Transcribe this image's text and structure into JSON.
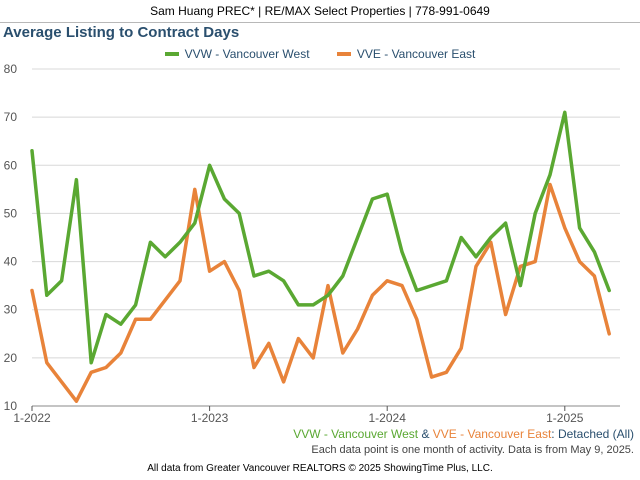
{
  "header": {
    "contact": "Sam Huang PREC* | RE/MAX Select Properties | 778-991-0649"
  },
  "colors": {
    "vvw": "#5aa832",
    "vve": "#e8833a",
    "title": "#2a4f6e",
    "tick": "#555555"
  },
  "chart_data": {
    "type": "line",
    "title": "Average Listing to Contract Days",
    "ylim": [
      10,
      80
    ],
    "yticks": [
      10,
      20,
      30,
      40,
      50,
      60,
      70,
      80
    ],
    "xticks": [
      {
        "index": 0,
        "label": "1-2022"
      },
      {
        "index": 12,
        "label": "1-2023"
      },
      {
        "index": 24,
        "label": "1-2024"
      },
      {
        "index": 36,
        "label": "1-2025"
      }
    ],
    "grid": "horizontal",
    "legend": "top-center",
    "series": [
      {
        "name": "VVW - Vancouver West",
        "color": "#5aa832",
        "values": [
          63,
          33,
          36,
          57,
          19,
          29,
          27,
          31,
          44,
          41,
          44,
          48,
          60,
          53,
          50,
          37,
          38,
          36,
          31,
          31,
          33,
          37,
          45,
          53,
          54,
          42,
          34,
          35,
          36,
          45,
          41,
          45,
          48,
          35,
          50,
          58,
          71,
          47,
          42,
          34
        ]
      },
      {
        "name": "VVE - Vancouver East",
        "color": "#e8833a",
        "values": [
          34,
          19,
          15,
          11,
          17,
          18,
          21,
          28,
          28,
          32,
          36,
          55,
          38,
          40,
          34,
          18,
          23,
          15,
          24,
          20,
          35,
          21,
          26,
          33,
          36,
          35,
          28,
          16,
          17,
          22,
          39,
          44,
          29,
          39,
          40,
          56,
          47,
          40,
          37,
          25
        ]
      }
    ]
  },
  "caption": {
    "vvw": "VVW - Vancouver West",
    "amp": " & ",
    "vve": "VVE - Vancouver East",
    "rest": ": Detached (All)",
    "note": "Each data point is one month of activity. Data is from May 9, 2025."
  },
  "footer": "All data from Greater Vancouver REALTORS © 2025 ShowingTime Plus, LLC."
}
